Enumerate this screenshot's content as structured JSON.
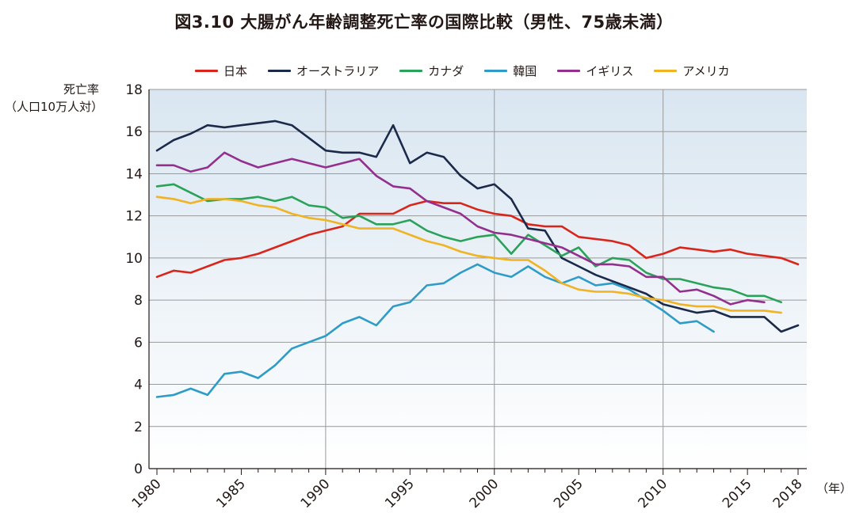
{
  "chart_data": {
    "type": "line",
    "title": "図3.10  大腸がん年齢調整死亡率の国際比較（男性、75歳未満）",
    "ylabel_line1": "死亡率",
    "ylabel_line2": "（人口10万人対）",
    "xunit": "（年）",
    "ylim": [
      0,
      18
    ],
    "xlim": [
      1980,
      2018
    ],
    "yticks": [
      0,
      2,
      4,
      6,
      8,
      10,
      12,
      14,
      16,
      18
    ],
    "xticks": [
      1980,
      1985,
      1990,
      1995,
      2000,
      2005,
      2010,
      2015,
      2018
    ],
    "grid": true,
    "legend_position": "top",
    "series": [
      {
        "name": "日本",
        "color": "#d9261c",
        "start": 1980,
        "values": [
          9.1,
          9.4,
          9.3,
          9.6,
          9.9,
          10.0,
          10.2,
          10.5,
          10.8,
          11.1,
          11.3,
          11.5,
          12.1,
          12.1,
          12.1,
          12.5,
          12.7,
          12.6,
          12.6,
          12.3,
          12.1,
          12.0,
          11.6,
          11.5,
          11.5,
          11.0,
          10.9,
          10.8,
          10.6,
          10.0,
          10.2,
          10.5,
          10.4,
          10.3,
          10.4,
          10.2,
          10.1,
          10.0,
          9.7
        ]
      },
      {
        "name": "オーストラリア",
        "color": "#1b2a4a",
        "start": 1980,
        "values": [
          15.1,
          15.6,
          15.9,
          16.3,
          16.2,
          16.3,
          16.4,
          16.5,
          16.3,
          15.7,
          15.1,
          15.0,
          15.0,
          14.8,
          16.3,
          14.5,
          15.0,
          14.8,
          13.9,
          13.3,
          13.5,
          12.8,
          11.4,
          11.3,
          10.0,
          9.6,
          9.2,
          8.9,
          8.6,
          8.3,
          7.8,
          7.6,
          7.4,
          7.5,
          7.2,
          7.2,
          7.2,
          6.5,
          6.8
        ]
      },
      {
        "name": "カナダ",
        "color": "#2aa25a",
        "start": 1980,
        "values": [
          13.4,
          13.5,
          13.1,
          12.7,
          12.8,
          12.8,
          12.9,
          12.7,
          12.9,
          12.5,
          12.4,
          11.9,
          12.0,
          11.6,
          11.6,
          11.8,
          11.3,
          11.0,
          10.8,
          11.0,
          11.1,
          10.2,
          11.1,
          10.6,
          10.1,
          10.5,
          9.6,
          10.0,
          9.9,
          9.3,
          9.0,
          9.0,
          8.8,
          8.6,
          8.5,
          8.2,
          8.2,
          7.9
        ]
      },
      {
        "name": "韓国",
        "color": "#2e9cc6",
        "start": 1980,
        "values": [
          3.4,
          3.5,
          3.8,
          3.5,
          4.5,
          4.6,
          4.3,
          4.9,
          5.7,
          6.0,
          6.3,
          6.9,
          7.2,
          6.8,
          7.7,
          7.9,
          8.7,
          8.8,
          9.3,
          9.7,
          9.3,
          9.1,
          9.6,
          9.1,
          8.8,
          9.1,
          8.7,
          8.8,
          8.5,
          8.0,
          7.5,
          6.9,
          7.0,
          6.5
        ]
      },
      {
        "name": "イギリス",
        "color": "#93308e",
        "start": 1980,
        "values": [
          14.4,
          14.4,
          14.1,
          14.3,
          15.0,
          14.6,
          14.3,
          14.5,
          14.7,
          14.5,
          14.3,
          14.5,
          14.7,
          13.9,
          13.4,
          13.3,
          12.7,
          12.4,
          12.1,
          11.5,
          11.2,
          11.1,
          10.9,
          10.7,
          10.5,
          10.1,
          9.7,
          9.7,
          9.6,
          9.1,
          9.1,
          8.4,
          8.5,
          8.2,
          7.8,
          8.0,
          7.9
        ]
      },
      {
        "name": "アメリカ",
        "color": "#f0b323",
        "start": 1980,
        "values": [
          12.9,
          12.8,
          12.6,
          12.8,
          12.8,
          12.7,
          12.5,
          12.4,
          12.1,
          11.9,
          11.8,
          11.6,
          11.4,
          11.4,
          11.4,
          11.1,
          10.8,
          10.6,
          10.3,
          10.1,
          10.0,
          9.9,
          9.9,
          9.4,
          8.8,
          8.5,
          8.4,
          8.4,
          8.3,
          8.1,
          8.0,
          7.8,
          7.7,
          7.7,
          7.5,
          7.5,
          7.5,
          7.4
        ]
      }
    ]
  }
}
